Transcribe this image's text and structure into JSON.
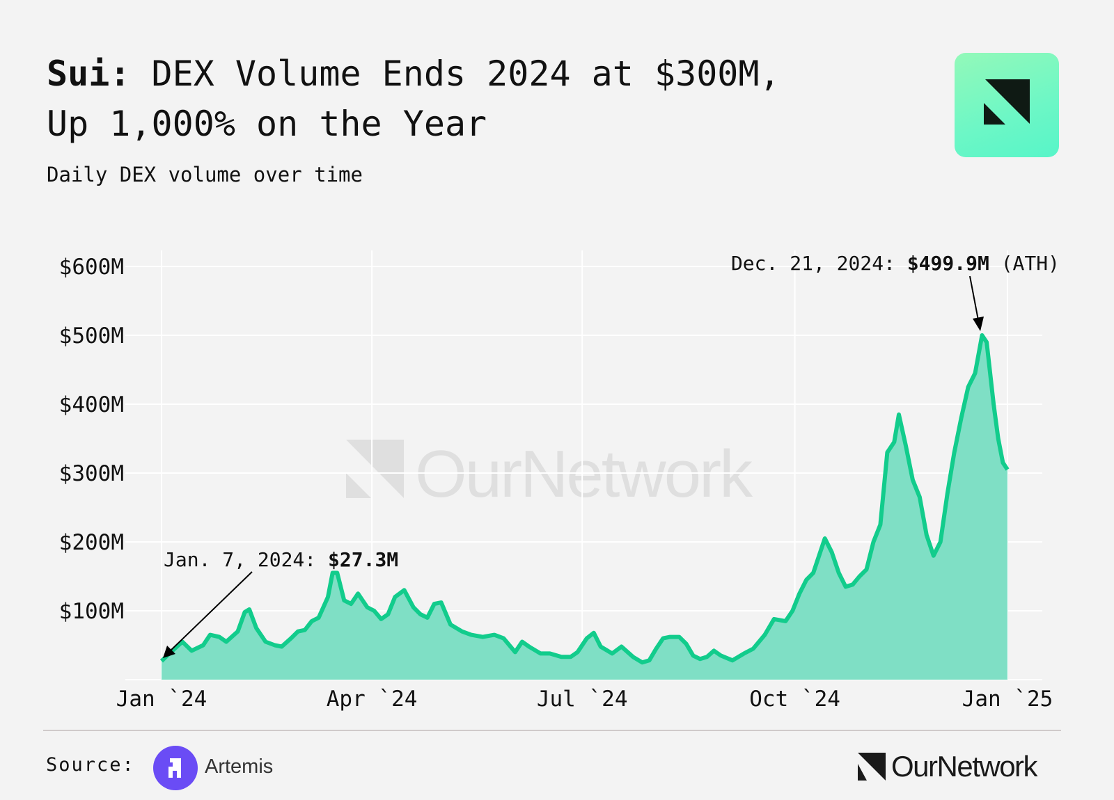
{
  "header": {
    "title_bold": "Sui:",
    "title_rest": " DEX Volume Ends 2024 at $300M,\nUp 1,000% on the Year",
    "subtitle": "Daily DEX volume over time"
  },
  "footer": {
    "source_label": "Source:",
    "source_name": "Artemis",
    "brand": "OurNetwork"
  },
  "watermark": "OurNetwork",
  "colors": {
    "line": "#12cc8c",
    "fill": "#7fdfc5",
    "accent_logo": "#6cf7c6",
    "artemis": "#6a4cf5"
  },
  "chart_data": {
    "type": "area",
    "title": "Sui: DEX Volume Ends 2024 at $300M, Up 1,000% on the Year",
    "subtitle": "Daily DEX volume over time",
    "xlabel": "",
    "ylabel": "",
    "x_unit": "days since Jan 1, 2024",
    "ylim": [
      0,
      600
    ],
    "y_unit": "$M",
    "y_ticks": [
      {
        "v": 100,
        "label": "$100M"
      },
      {
        "v": 200,
        "label": "$200M"
      },
      {
        "v": 300,
        "label": "$300M"
      },
      {
        "v": 400,
        "label": "$400M"
      },
      {
        "v": 500,
        "label": "$500M"
      },
      {
        "v": 600,
        "label": "$600M"
      }
    ],
    "x_ticks": [
      {
        "v": 0,
        "label": "Jan `24"
      },
      {
        "v": 91,
        "label": "Apr `24"
      },
      {
        "v": 182,
        "label": "Jul `24"
      },
      {
        "v": 274,
        "label": "Oct `24"
      },
      {
        "v": 366,
        "label": "Jan `25"
      }
    ],
    "grid": true,
    "series": [
      {
        "name": "Daily DEX volume",
        "x": [
          0,
          4,
          9,
          13,
          18,
          21,
          25,
          28,
          33,
          36,
          38,
          41,
          45,
          49,
          52,
          56,
          59,
          62,
          65,
          68,
          72,
          74,
          76,
          79,
          82,
          85,
          89,
          92,
          95,
          98,
          101,
          105,
          109,
          112,
          115,
          118,
          121,
          125,
          130,
          134,
          139,
          144,
          148,
          153,
          156,
          159,
          164,
          168,
          173,
          177,
          180,
          184,
          187,
          190,
          195,
          199,
          204,
          208,
          211,
          214,
          217,
          220,
          224,
          227,
          230,
          233,
          236,
          239,
          242,
          247,
          252,
          256,
          261,
          265,
          270,
          273,
          276,
          279,
          282,
          287,
          290,
          293,
          296,
          299,
          302,
          305,
          308,
          311,
          314,
          317,
          319,
          322,
          325,
          328,
          331,
          334,
          337,
          340,
          343,
          346,
          349,
          352,
          355,
          357,
          360,
          362,
          364,
          366
        ],
        "values": [
          27,
          40,
          55,
          42,
          50,
          65,
          62,
          55,
          70,
          98,
          102,
          75,
          55,
          50,
          48,
          60,
          70,
          72,
          85,
          90,
          120,
          155,
          155,
          115,
          110,
          125,
          105,
          100,
          88,
          95,
          120,
          130,
          105,
          95,
          90,
          110,
          112,
          80,
          70,
          65,
          62,
          65,
          60,
          40,
          55,
          48,
          38,
          38,
          33,
          33,
          40,
          60,
          68,
          48,
          38,
          48,
          33,
          25,
          28,
          45,
          60,
          62,
          62,
          52,
          35,
          30,
          33,
          42,
          35,
          28,
          38,
          45,
          65,
          88,
          85,
          100,
          125,
          145,
          155,
          205,
          185,
          155,
          135,
          138,
          150,
          160,
          200,
          225,
          330,
          345,
          385,
          340,
          290,
          265,
          210,
          180,
          200,
          270,
          330,
          380,
          425,
          445,
          500,
          490,
          400,
          350,
          315,
          305
        ]
      }
    ],
    "annotations": [
      {
        "x": 0,
        "y": 27.3,
        "text_plain": "Jan. 7, 2024: ",
        "text_bold": "$27.3M"
      },
      {
        "x": 355,
        "y": 499.9,
        "text_plain": "Dec. 21, 2024: ",
        "text_bold": "$499.9M",
        "text_suffix": " (ATH)"
      }
    ]
  }
}
